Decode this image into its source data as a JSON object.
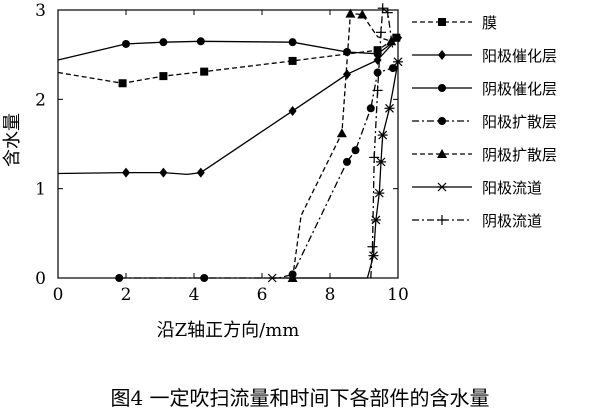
{
  "chart_data": {
    "type": "line",
    "title": "",
    "xlabel": "沿Z轴正方向/mm",
    "ylabel": "含水量",
    "xlim": [
      0,
      10
    ],
    "ylim": [
      0,
      3
    ],
    "xticks": [
      "0",
      "2",
      "4",
      "6",
      "8",
      "10"
    ],
    "yticks": [
      "0",
      "1",
      "2",
      "3"
    ],
    "grid": false,
    "legend_position": "top-right",
    "caption": "图4 一定吹扫流量和时间下各部件的含水量",
    "series": [
      {
        "name": "膜",
        "dash": "dashed",
        "marker": "square",
        "points": [
          [
            0,
            2.3
          ],
          [
            1.9,
            2.18
          ],
          [
            3.1,
            2.26
          ],
          [
            4.3,
            2.31
          ],
          [
            6.9,
            2.43
          ],
          [
            9.4,
            2.55
          ],
          [
            9.95,
            2.69
          ]
        ],
        "marker_points": [
          [
            1.9,
            2.18
          ],
          [
            3.1,
            2.26
          ],
          [
            4.3,
            2.31
          ],
          [
            6.9,
            2.43
          ],
          [
            9.4,
            2.55
          ],
          [
            9.95,
            2.69
          ]
        ]
      },
      {
        "name": "阳极催化层",
        "dash": "solid",
        "marker": "diamond",
        "points": [
          [
            0,
            1.17
          ],
          [
            2.0,
            1.18
          ],
          [
            3.1,
            1.18
          ],
          [
            3.8,
            1.16
          ],
          [
            4.2,
            1.18
          ],
          [
            6.9,
            1.87
          ],
          [
            8.5,
            2.28
          ],
          [
            9.4,
            2.44
          ],
          [
            10.0,
            2.69
          ]
        ],
        "marker_points": [
          [
            2.0,
            1.18
          ],
          [
            3.1,
            1.18
          ],
          [
            4.2,
            1.18
          ],
          [
            6.9,
            1.87
          ],
          [
            8.5,
            2.28
          ],
          [
            9.4,
            2.44
          ],
          [
            10.0,
            2.69
          ]
        ]
      },
      {
        "name": "阴极催化层",
        "dash": "solid",
        "marker": "circle",
        "points": [
          [
            0,
            2.44
          ],
          [
            2.0,
            2.62
          ],
          [
            3.1,
            2.64
          ],
          [
            4.2,
            2.65
          ],
          [
            6.9,
            2.64
          ],
          [
            8.5,
            2.53
          ],
          [
            9.4,
            2.51
          ],
          [
            10.0,
            2.68
          ]
        ],
        "marker_points": [
          [
            2.0,
            2.62
          ],
          [
            3.1,
            2.64
          ],
          [
            4.2,
            2.65
          ],
          [
            6.9,
            2.64
          ],
          [
            8.5,
            2.53
          ],
          [
            9.4,
            2.51
          ]
        ]
      },
      {
        "name": "阳极扩散层",
        "dash": "dashdot",
        "marker": "circle",
        "points": [
          [
            1.8,
            0.0
          ],
          [
            4.3,
            0.0
          ],
          [
            6.5,
            0.0
          ],
          [
            6.9,
            0.04
          ],
          [
            8.5,
            1.3
          ],
          [
            8.75,
            1.43
          ],
          [
            9.2,
            1.9
          ],
          [
            9.4,
            2.3
          ],
          [
            9.85,
            2.35
          ],
          [
            10.0,
            2.38
          ]
        ],
        "marker_points": [
          [
            1.8,
            0.0
          ],
          [
            4.3,
            0.0
          ],
          [
            6.9,
            0.04
          ],
          [
            8.5,
            1.3
          ],
          [
            8.75,
            1.43
          ],
          [
            9.2,
            1.9
          ],
          [
            9.4,
            2.3
          ],
          [
            9.85,
            2.35
          ]
        ]
      },
      {
        "name": "阴极扩散层",
        "dash": "dashed",
        "marker": "triangle",
        "points": [
          [
            6.9,
            0.0
          ],
          [
            7.15,
            0.7
          ],
          [
            8.35,
            1.62
          ],
          [
            8.6,
            2.96
          ],
          [
            8.95,
            2.95
          ],
          [
            9.4,
            2.7
          ],
          [
            9.8,
            2.65
          ]
        ],
        "marker_points": [
          [
            6.9,
            0.0
          ],
          [
            8.35,
            1.62
          ],
          [
            8.6,
            2.96
          ],
          [
            8.95,
            2.95
          ],
          [
            9.8,
            2.65
          ]
        ]
      },
      {
        "name": "阳极流道",
        "dash": "solid",
        "marker": "star",
        "points": [
          [
            6.3,
            0.0
          ],
          [
            9.1,
            0.0
          ],
          [
            9.28,
            0.25
          ],
          [
            9.35,
            0.65
          ],
          [
            9.45,
            0.95
          ],
          [
            9.5,
            1.3
          ],
          [
            9.55,
            1.6
          ],
          [
            9.75,
            1.9
          ],
          [
            9.85,
            2.1
          ],
          [
            10.0,
            2.42
          ]
        ],
        "marker_points": [
          [
            6.3,
            0.0
          ],
          [
            9.28,
            0.25
          ],
          [
            9.35,
            0.65
          ],
          [
            9.45,
            0.95
          ],
          [
            9.5,
            1.3
          ],
          [
            9.55,
            1.6
          ],
          [
            9.75,
            1.9
          ],
          [
            10.0,
            2.42
          ]
        ]
      },
      {
        "name": "阴极流道",
        "dash": "dashdot",
        "marker": "plus",
        "points": [
          [
            9.2,
            0.0
          ],
          [
            9.25,
            0.35
          ],
          [
            9.3,
            1.35
          ],
          [
            9.4,
            2.1
          ],
          [
            9.5,
            2.75
          ],
          [
            9.55,
            3.02
          ],
          [
            9.7,
            2.97
          ],
          [
            9.85,
            2.55
          ]
        ],
        "marker_points": [
          [
            9.25,
            0.35
          ],
          [
            9.3,
            1.35
          ],
          [
            9.4,
            2.1
          ],
          [
            9.5,
            2.75
          ],
          [
            9.55,
            3.02
          ],
          [
            9.7,
            2.97
          ]
        ]
      }
    ]
  }
}
